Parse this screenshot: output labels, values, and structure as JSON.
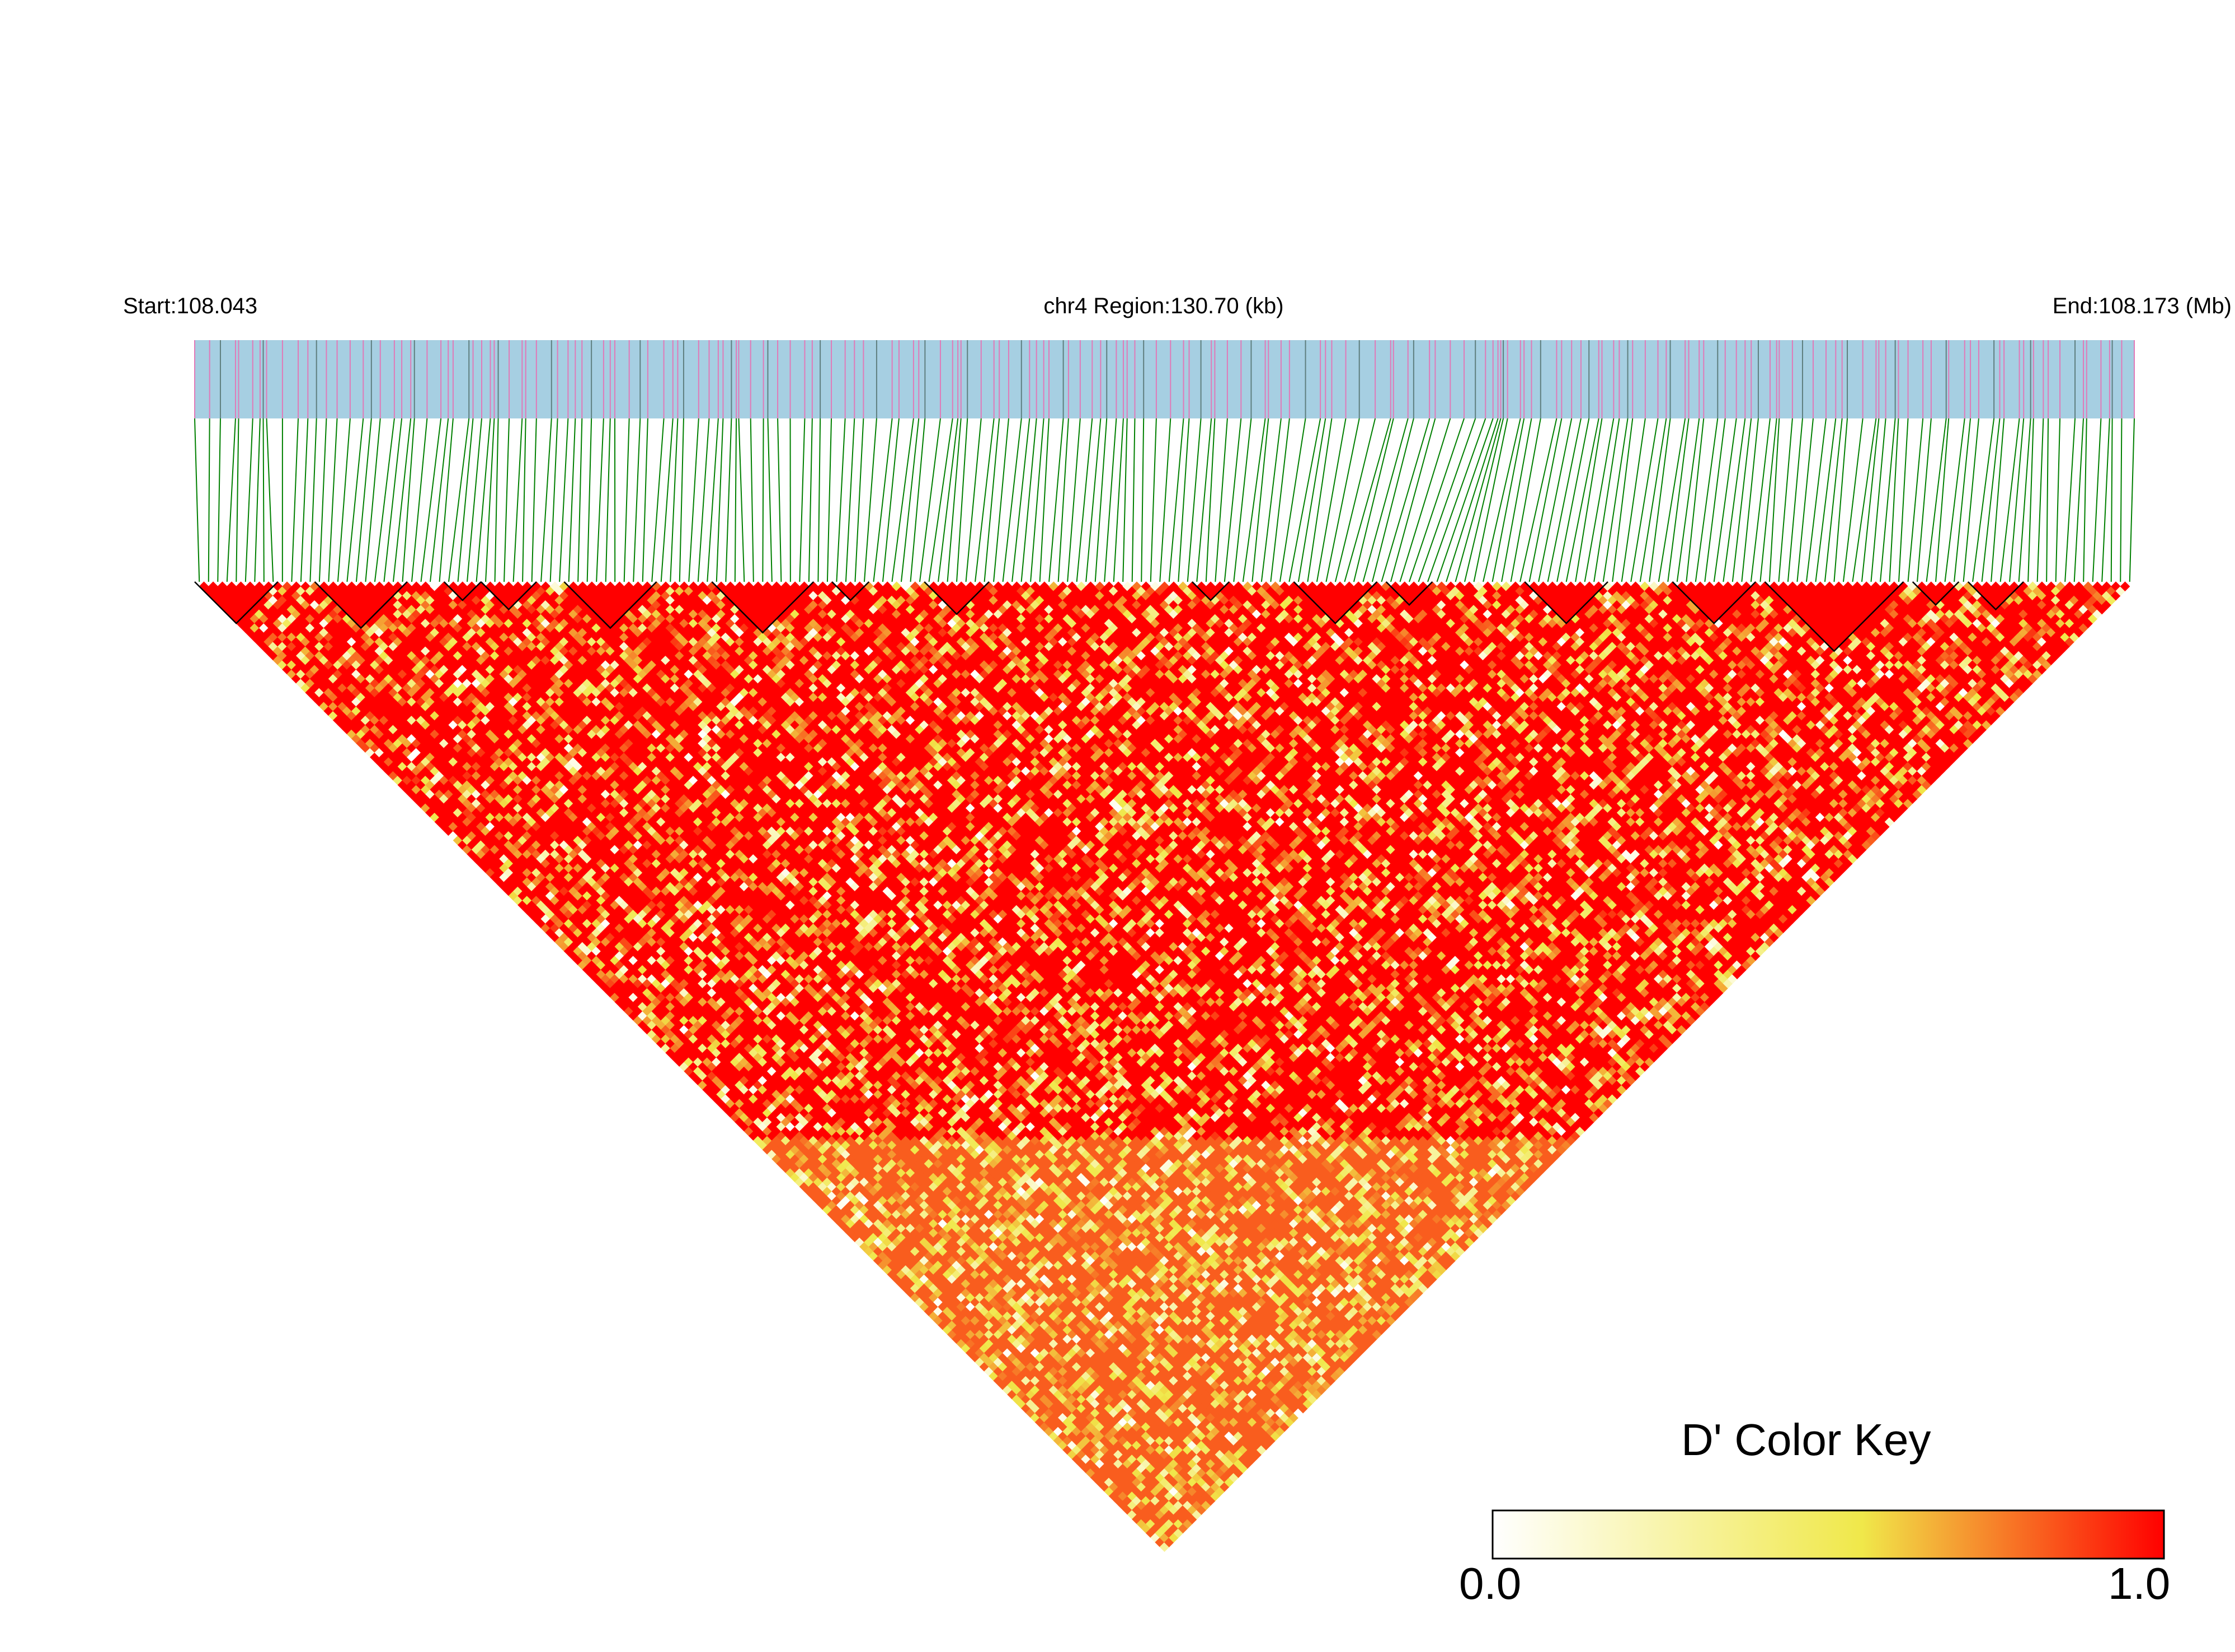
{
  "header": {
    "start_label": "Start:108.043",
    "region_label": "chr4 Region:130.70 (kb)",
    "end_label": "End:108.173 (Mb)"
  },
  "color_key": {
    "title": "D' Color Key",
    "min_label": "0.0",
    "max_label": "1.0",
    "stops": [
      "#ffffff",
      "#f0e84a",
      "#ff0000"
    ]
  },
  "colors": {
    "track_bg": "#a6cfe2",
    "snp_tick_pink": "#e07ab8",
    "snp_tick_gray": "#5f7f7f",
    "connector_green": "#008000",
    "high_ld_red": "#ff0000",
    "block_outline": "#000000"
  },
  "chart_data": {
    "type": "heatmap",
    "title": "",
    "chromosome": "chr4",
    "region_start_mb": 108.043,
    "region_end_mb": 108.173,
    "region_length_kb": 130.7,
    "statistic": "D'",
    "value_range": [
      0,
      1
    ],
    "n_markers": 210,
    "ld_blocks_marker_ranges": [
      [
        0,
        8
      ],
      [
        13,
        22
      ],
      [
        27,
        30
      ],
      [
        31,
        36
      ],
      [
        40,
        49
      ],
      [
        56,
        66
      ],
      [
        69,
        72
      ],
      [
        79,
        85
      ],
      [
        108,
        111
      ],
      [
        119,
        127
      ],
      [
        129,
        133
      ],
      [
        144,
        152
      ],
      [
        160,
        168
      ],
      [
        170,
        184
      ],
      [
        186,
        190
      ],
      [
        192,
        197
      ]
    ],
    "colorbar": {
      "min": 0.0,
      "max": 1.0
    }
  }
}
